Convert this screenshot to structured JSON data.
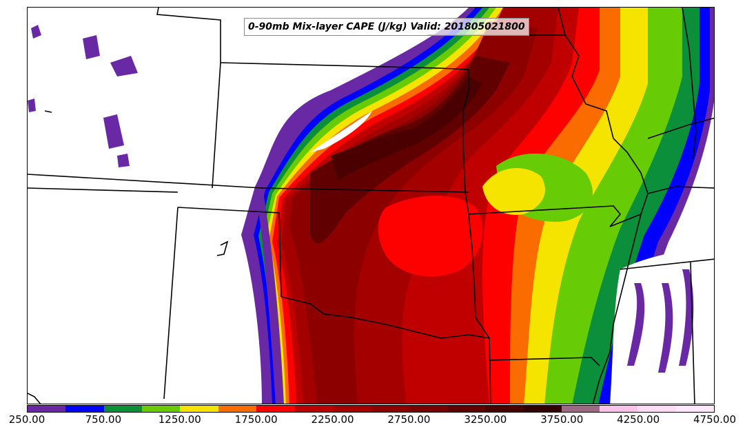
{
  "title": "0-90mb Mix-layer CAPE (J/kg) Valid: 201805021800",
  "colorbar": {
    "tick_labels": [
      "250.00",
      "750.00",
      "1250.00",
      "1750.00",
      "2250.00",
      "2750.00",
      "3250.00",
      "3750.00",
      "4250.00",
      "4750.00"
    ],
    "colors": [
      "#6a29a4",
      "#0000ff",
      "#0c8f3a",
      "#67cc06",
      "#f5e300",
      "#fb6c00",
      "#fd0000",
      "#c00000",
      "#a50000",
      "#8d0000",
      "#780000",
      "#600000",
      "#4b0000",
      "#320000",
      "#9b6b86",
      "#f8c4ea",
      "#fddcf4",
      "#ffe8fb"
    ]
  },
  "icons": {
    "state-borders": "state-border-lines"
  }
}
